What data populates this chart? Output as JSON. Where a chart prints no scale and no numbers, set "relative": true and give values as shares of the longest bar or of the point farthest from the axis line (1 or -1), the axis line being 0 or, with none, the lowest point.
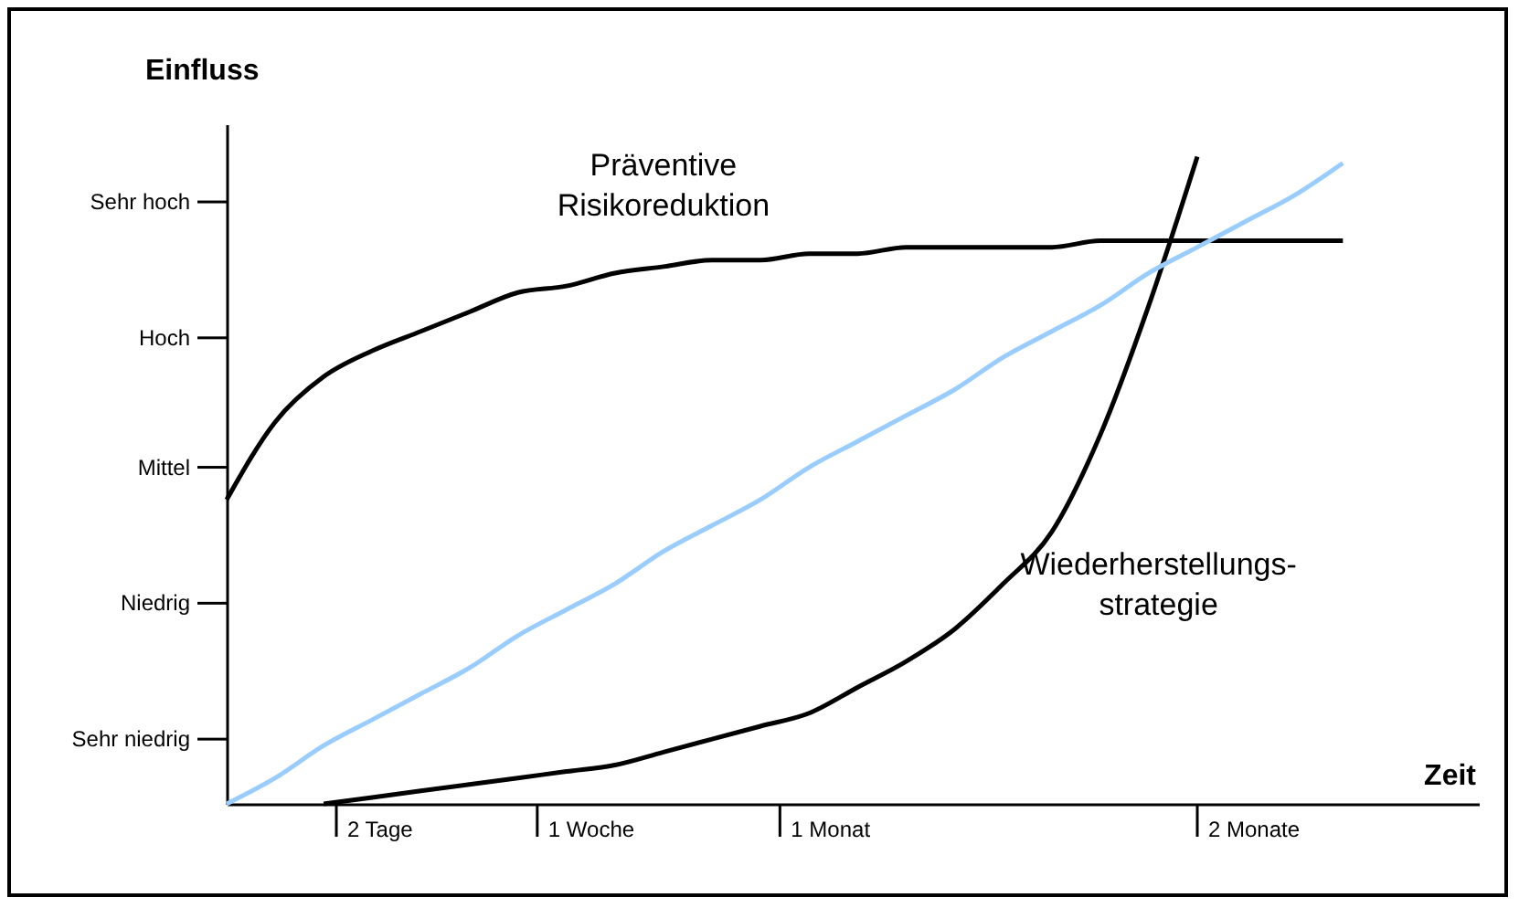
{
  "chart_data": {
    "type": "line",
    "relative": true,
    "xlabel": "Zeit",
    "ylabel": "Einfluss",
    "categories": [
      null,
      null,
      null,
      null,
      null,
      null,
      null,
      null,
      null,
      null,
      null,
      null,
      null,
      null,
      null,
      null,
      null,
      null,
      null,
      null,
      null,
      null,
      null,
      null
    ],
    "annotations": [
      "Sehr niedrig",
      "Niedrig",
      "Mittel",
      "Hoch",
      "Sehr hoch",
      "2 Tage",
      "1 Woche",
      "1 Monat",
      "2 Monate"
    ],
    "grid": false,
    "legend": false,
    "marker": "none",
    "line_style": "solid",
    "series": [
      {
        "name": "Präventive Risikoreduktion",
        "color": "#000000",
        "values": [
          0.47,
          0.59,
          0.66,
          0.7,
          0.73,
          0.76,
          0.79,
          0.8,
          0.82,
          0.83,
          0.84,
          0.84,
          0.85,
          0.85,
          0.86,
          0.86,
          0.86,
          0.86,
          0.87,
          0.87,
          0.87,
          0.87,
          0.87,
          0.87
        ]
      },
      {
        "name": "Wiederherstellungs-strategie",
        "color": "#000000",
        "values": [
          null,
          null,
          0,
          0.01,
          0.02,
          0.03,
          0.04,
          0.05,
          0.06,
          0.08,
          0.1,
          0.12,
          0.14,
          0.18,
          0.22,
          0.27,
          0.34,
          0.42,
          0.57,
          0.77,
          1.0,
          null,
          null,
          null
        ]
      },
      {
        "color": "#99ccff",
        "values": [
          0,
          0.04,
          0.09,
          0.13,
          0.17,
          0.21,
          0.26,
          0.3,
          0.34,
          0.39,
          0.43,
          0.47,
          0.52,
          0.56,
          0.6,
          0.64,
          0.69,
          0.73,
          0.77,
          0.82,
          0.86,
          0.9,
          0.94,
          0.99
        ]
      }
    ]
  }
}
